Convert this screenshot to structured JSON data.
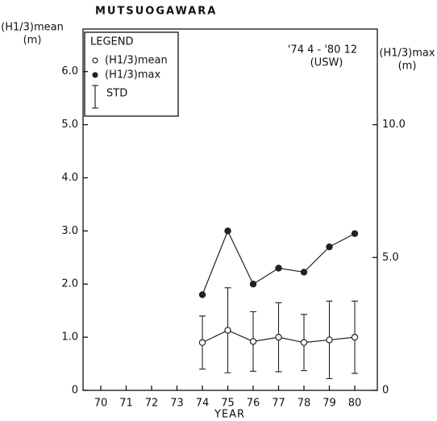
{
  "chart_data": {
    "type": "line",
    "title": "MUTSUOGAWARA",
    "ylabel": [
      "(H1/3)mean",
      "(m)"
    ],
    "y2label": [
      "(H1/3)max",
      "(m)"
    ],
    "xlabel": "YEAR",
    "legend_title": "LEGEND",
    "error_name": "STD",
    "annotation": [
      "'74 4 - '80 12",
      "(USW)"
    ],
    "categories": [
      "70",
      "71",
      "72",
      "73",
      "74",
      "75",
      "76",
      "77",
      "78",
      "79",
      "80"
    ],
    "series": [
      {
        "name": "(H1/3)mean",
        "color": "#222",
        "marker": "open",
        "values": [
          null,
          null,
          null,
          null,
          0.9,
          1.13,
          0.92,
          1.0,
          0.9,
          0.95,
          1.0
        ],
        "errors": [
          null,
          null,
          null,
          null,
          0.5,
          0.8,
          0.56,
          0.65,
          0.53,
          0.73,
          0.68
        ]
      },
      {
        "name": "(H1/3)max",
        "color": "#222",
        "marker": "filled",
        "axis": "y2",
        "values": [
          null,
          null,
          null,
          null,
          3.6,
          6.0,
          4.0,
          4.6,
          4.45,
          5.4,
          5.9
        ]
      }
    ],
    "ylim": [
      0,
      6.8
    ],
    "yticks": [
      0,
      {
        "value": 1,
        "label": "1.0"
      },
      {
        "value": 2,
        "label": "2.0"
      },
      {
        "value": 3,
        "label": "3.0"
      },
      {
        "value": 4,
        "label": "4.0"
      },
      {
        "value": 5,
        "label": "5.0"
      },
      {
        "value": 6,
        "label": "6.0"
      }
    ],
    "y2lim": [
      0,
      13.6
    ],
    "y2ticks": [
      0,
      {
        "value": 5,
        "label": "5.0"
      },
      {
        "value": 10,
        "label": "10.0"
      }
    ]
  }
}
